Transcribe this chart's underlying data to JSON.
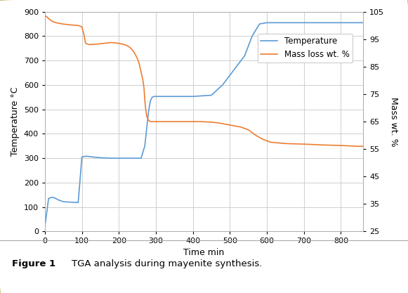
{
  "title": "TGA analysis during mayenite synthesis.",
  "figure_label": "Figure 1",
  "xlabel": "Time min",
  "ylabel_left": "Temperature °C",
  "ylabel_right": "Mass wt. %",
  "temp_color": "#5B9BD5",
  "mass_color": "#ED7D31",
  "background_color": "#FFFFFF",
  "grid_color": "#C8C8C8",
  "caption_bg": "#F0EDE4",
  "border_color": "#C8B870",
  "xlim": [
    0,
    860
  ],
  "ylim_left": [
    0,
    900
  ],
  "ylim_right": [
    25,
    105
  ],
  "xticks": [
    0,
    100,
    200,
    300,
    400,
    500,
    600,
    700,
    800
  ],
  "yticks_left": [
    0,
    100,
    200,
    300,
    400,
    500,
    600,
    700,
    800,
    900
  ],
  "yticks_right": [
    25,
    35,
    45,
    55,
    65,
    75,
    85,
    95,
    105
  ],
  "temp_x": [
    0,
    10,
    18,
    25,
    30,
    35,
    50,
    70,
    85,
    90,
    100,
    110,
    112,
    115,
    120,
    130,
    150,
    180,
    210,
    230,
    240,
    250,
    260,
    270,
    275,
    280,
    285,
    290,
    295,
    300,
    350,
    400,
    420,
    450,
    480,
    510,
    540,
    560,
    580,
    600,
    650,
    700,
    750,
    800,
    850,
    860
  ],
  "temp_y": [
    20,
    135,
    140,
    138,
    135,
    130,
    122,
    120,
    119,
    118,
    305,
    308,
    308,
    308,
    307,
    305,
    302,
    300,
    300,
    300,
    300,
    300,
    300,
    350,
    420,
    490,
    535,
    550,
    553,
    553,
    553,
    553,
    555,
    558,
    600,
    660,
    720,
    800,
    850,
    855,
    855,
    855,
    855,
    855,
    855,
    855
  ],
  "mass_x": [
    0,
    5,
    10,
    20,
    30,
    50,
    70,
    90,
    100,
    105,
    110,
    120,
    140,
    160,
    180,
    200,
    210,
    220,
    230,
    240,
    250,
    255,
    260,
    265,
    268,
    270,
    272,
    275,
    278,
    280,
    285,
    290,
    295,
    300,
    320,
    350,
    380,
    400,
    420,
    450,
    470,
    490,
    510,
    530,
    550,
    570,
    590,
    610,
    650,
    700,
    750,
    800,
    850,
    860
  ],
  "mass_y": [
    103.5,
    103.2,
    102.5,
    101.5,
    101,
    100.5,
    100.2,
    100,
    99.5,
    97,
    93.5,
    93,
    93.2,
    93.5,
    93.8,
    93.5,
    93.2,
    92.8,
    92,
    90.5,
    88,
    86,
    83,
    80,
    77,
    73,
    70,
    67,
    66,
    65.5,
    65,
    65,
    65,
    65,
    65,
    65,
    65,
    65,
    65,
    64.8,
    64.5,
    64,
    63.5,
    63,
    62,
    60,
    58.5,
    57.5,
    57,
    56.8,
    56.5,
    56.3,
    56,
    56
  ]
}
